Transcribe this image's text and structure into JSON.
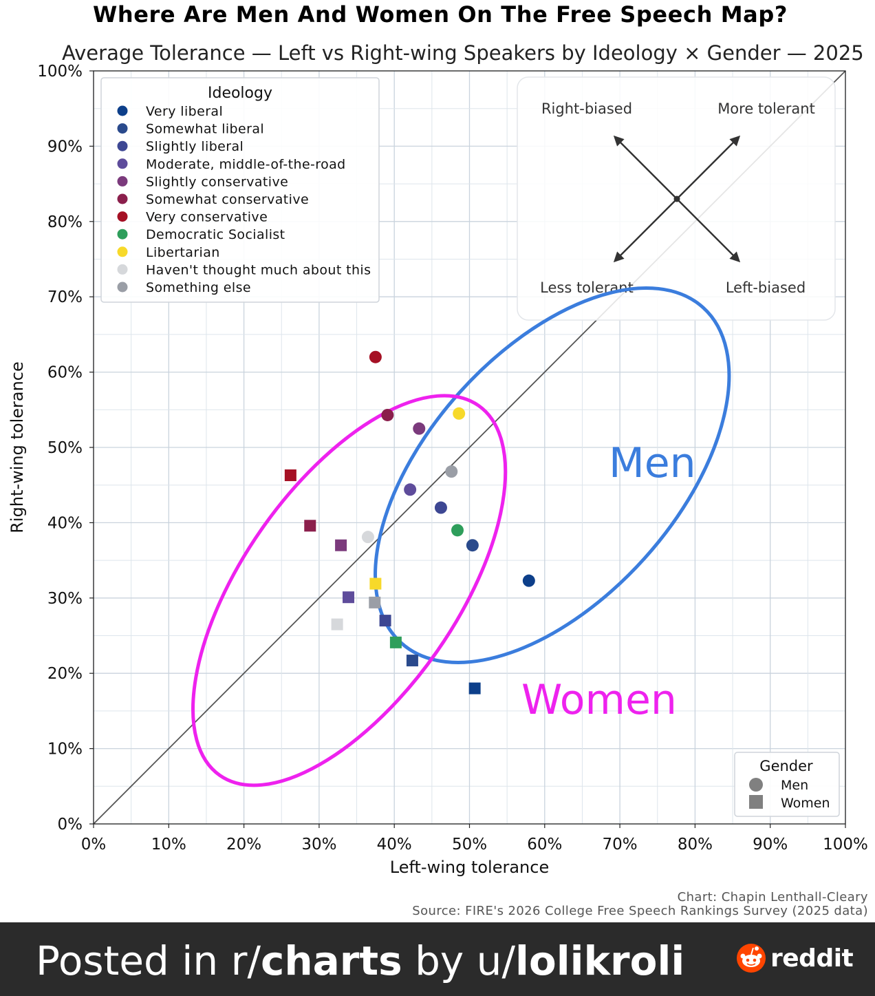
{
  "chart_data": {
    "type": "scatter",
    "title": "Where Are Men And Women On The Free Speech Map?",
    "subtitle": "Average Tolerance — Left vs Right-wing Speakers by Ideology × Gender — 2025",
    "xlabel": "Left-wing tolerance",
    "ylabel": "Right-wing tolerance",
    "xlim": [
      0,
      100
    ],
    "ylim": [
      0,
      100
    ],
    "x_ticks": [
      "0%",
      "10%",
      "20%",
      "30%",
      "40%",
      "50%",
      "60%",
      "70%",
      "80%",
      "90%",
      "100%"
    ],
    "y_ticks": [
      "0%",
      "10%",
      "20%",
      "30%",
      "40%",
      "50%",
      "60%",
      "70%",
      "80%",
      "90%",
      "100%"
    ],
    "grid": true,
    "diagonal": "y = x",
    "ideology_legend": {
      "title": "Ideology",
      "placement": "top-left",
      "items": [
        {
          "label": "Very liberal",
          "color": "#0d3f8a"
        },
        {
          "label": "Somewhat liberal",
          "color": "#2a4a8c"
        },
        {
          "label": "Slightly liberal",
          "color": "#3d4793"
        },
        {
          "label": "Moderate, middle-of-the-road",
          "color": "#5e4c9b"
        },
        {
          "label": "Slightly conservative",
          "color": "#7b3a7c"
        },
        {
          "label": "Somewhat conservative",
          "color": "#8b1f4c"
        },
        {
          "label": "Very conservative",
          "color": "#a51024"
        },
        {
          "label": "Democratic Socialist",
          "color": "#2e9e5b"
        },
        {
          "label": "Libertarian",
          "color": "#f7d92a"
        },
        {
          "label": "Haven't thought much about this",
          "color": "#d6d8db"
        },
        {
          "label": "Something else",
          "color": "#9a9ea6"
        }
      ]
    },
    "gender_legend": {
      "title": "Gender",
      "placement": "bottom-right",
      "items": [
        {
          "label": "Men",
          "marker": "circle"
        },
        {
          "label": "Women",
          "marker": "square"
        }
      ]
    },
    "series": [
      {
        "name": "Men",
        "marker": "circle",
        "points": [
          {
            "ideology": "Very liberal",
            "x": 57.9,
            "y": 32.3
          },
          {
            "ideology": "Somewhat liberal",
            "x": 50.4,
            "y": 37.0
          },
          {
            "ideology": "Slightly liberal",
            "x": 46.2,
            "y": 42.0
          },
          {
            "ideology": "Moderate, middle-of-the-road",
            "x": 42.1,
            "y": 44.4
          },
          {
            "ideology": "Slightly conservative",
            "x": 43.3,
            "y": 52.5
          },
          {
            "ideology": "Somewhat conservative",
            "x": 39.1,
            "y": 54.3
          },
          {
            "ideology": "Very conservative",
            "x": 37.5,
            "y": 62.0
          },
          {
            "ideology": "Democratic Socialist",
            "x": 48.4,
            "y": 39.0
          },
          {
            "ideology": "Libertarian",
            "x": 48.6,
            "y": 54.5
          },
          {
            "ideology": "Haven't thought much about this",
            "x": 36.5,
            "y": 38.1
          },
          {
            "ideology": "Something else",
            "x": 47.6,
            "y": 46.8
          }
        ]
      },
      {
        "name": "Women",
        "marker": "square",
        "points": [
          {
            "ideology": "Very liberal",
            "x": 50.7,
            "y": 18.0
          },
          {
            "ideology": "Somewhat liberal",
            "x": 42.4,
            "y": 21.7
          },
          {
            "ideology": "Slightly liberal",
            "x": 38.8,
            "y": 27.0
          },
          {
            "ideology": "Moderate, middle-of-the-road",
            "x": 33.9,
            "y": 30.1
          },
          {
            "ideology": "Slightly conservative",
            "x": 32.9,
            "y": 37.0
          },
          {
            "ideology": "Somewhat conservative",
            "x": 28.8,
            "y": 39.6
          },
          {
            "ideology": "Very conservative",
            "x": 26.2,
            "y": 46.3
          },
          {
            "ideology": "Democratic Socialist",
            "x": 40.2,
            "y": 24.1
          },
          {
            "ideology": "Libertarian",
            "x": 37.5,
            "y": 31.9
          },
          {
            "ideology": "Haven't thought much about this",
            "x": 32.4,
            "y": 26.5
          },
          {
            "ideology": "Something else",
            "x": 37.4,
            "y": 29.4
          }
        ]
      }
    ],
    "annotations": {
      "men_label": "Men",
      "women_label": "Women",
      "men_color": "#3b7ddd",
      "women_color": "#ee22ee",
      "men_ellipse": {
        "cx": 61.0,
        "cy": 46.3,
        "rx": 30.0,
        "ry": 16.5,
        "angle_deg": -48
      },
      "women_ellipse": {
        "cx": 34.0,
        "cy": 31.0,
        "rx": 30.0,
        "ry": 14.2,
        "angle_deg": -55
      },
      "quadrant_key": {
        "top_left": "Right-biased",
        "top_right": "More tolerant",
        "bottom_left": "Less tolerant",
        "bottom_right": "Left-biased"
      }
    },
    "credit": "Chart: Chapin Lenthall-Cleary",
    "source": "Source: FIRE's 2026 College Free Speech Rankings Survey (2025 data)"
  },
  "footer": {
    "prefix": "Posted in r/",
    "subreddit": "charts",
    "by": " by u/",
    "user": "lolikroli",
    "brand": "reddit"
  }
}
